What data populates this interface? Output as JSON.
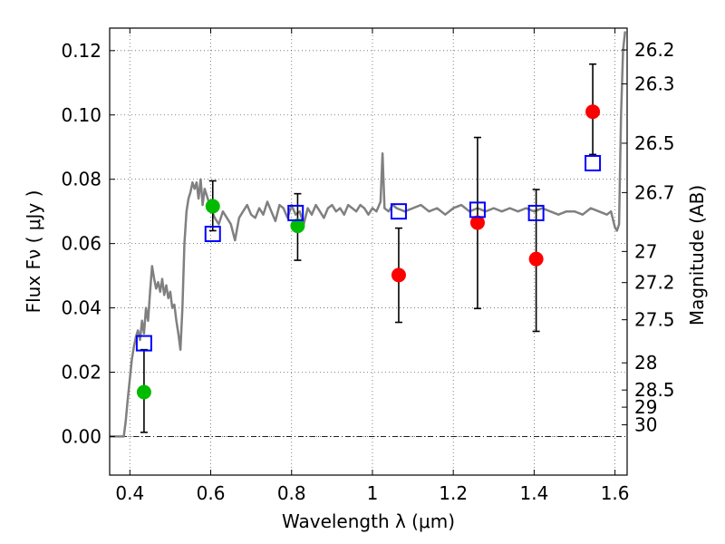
{
  "chart_data": {
    "type": "scatter",
    "xlabel": "Wavelength  λ (μm)",
    "ylabel": "Flux  Fν  ( μJy )",
    "y2label": "Magnitude (AB)",
    "xlim": [
      0.35,
      1.63
    ],
    "ylim": [
      -0.012,
      0.127
    ],
    "grid": true,
    "x_ticks": [
      0.4,
      0.6,
      0.8,
      1.0,
      1.2,
      1.4,
      1.6
    ],
    "x_tick_labels": [
      "0.4",
      "0.6",
      "0.8",
      "1",
      "1.2",
      "1.4",
      "1.6"
    ],
    "y_ticks": [
      0.0,
      0.02,
      0.04,
      0.06,
      0.08,
      0.1,
      0.12
    ],
    "y_tick_labels": [
      "0.00",
      "0.02",
      "0.04",
      "0.06",
      "0.08",
      "0.10",
      "0.12"
    ],
    "mag_ticks": [
      "26.2",
      "26.3",
      "26.5",
      "26.7",
      "27",
      "27.2",
      "27.5",
      "28",
      "28.5",
      "29",
      "30"
    ],
    "colors": {
      "sed": "#808080",
      "green": "#00bb00",
      "red": "#ff0000",
      "model_box": "#0000ff",
      "errorbar": "#000000"
    },
    "sed_curve": {
      "x": [
        0.35,
        0.385,
        0.39,
        0.395,
        0.4,
        0.405,
        0.41,
        0.415,
        0.42,
        0.425,
        0.43,
        0.435,
        0.44,
        0.445,
        0.45,
        0.455,
        0.46,
        0.465,
        0.47,
        0.475,
        0.48,
        0.485,
        0.49,
        0.495,
        0.5,
        0.505,
        0.51,
        0.515,
        0.52,
        0.525,
        0.53,
        0.535,
        0.54,
        0.545,
        0.55,
        0.555,
        0.56,
        0.565,
        0.57,
        0.575,
        0.58,
        0.585,
        0.59,
        0.6,
        0.61,
        0.62,
        0.63,
        0.64,
        0.65,
        0.66,
        0.67,
        0.68,
        0.69,
        0.7,
        0.71,
        0.72,
        0.73,
        0.74,
        0.75,
        0.76,
        0.77,
        0.78,
        0.79,
        0.8,
        0.81,
        0.82,
        0.83,
        0.84,
        0.85,
        0.86,
        0.87,
        0.88,
        0.89,
        0.9,
        0.91,
        0.92,
        0.93,
        0.94,
        0.95,
        0.96,
        0.97,
        0.98,
        0.99,
        1.0,
        1.01,
        1.02,
        1.025,
        1.03,
        1.04,
        1.05,
        1.06,
        1.08,
        1.1,
        1.12,
        1.14,
        1.16,
        1.18,
        1.2,
        1.22,
        1.24,
        1.26,
        1.28,
        1.3,
        1.32,
        1.34,
        1.36,
        1.38,
        1.4,
        1.42,
        1.44,
        1.46,
        1.48,
        1.5,
        1.52,
        1.54,
        1.56,
        1.58,
        1.59,
        1.6,
        1.605,
        1.61,
        1.615,
        1.62,
        1.625
      ],
      "y": [
        0.0,
        0.0,
        0.005,
        0.012,
        0.018,
        0.024,
        0.028,
        0.031,
        0.033,
        0.03,
        0.036,
        0.032,
        0.04,
        0.036,
        0.045,
        0.053,
        0.049,
        0.046,
        0.048,
        0.045,
        0.049,
        0.044,
        0.047,
        0.043,
        0.045,
        0.04,
        0.041,
        0.036,
        0.032,
        0.027,
        0.04,
        0.06,
        0.07,
        0.074,
        0.076,
        0.079,
        0.077,
        0.079,
        0.074,
        0.08,
        0.072,
        0.077,
        0.075,
        0.071,
        0.068,
        0.066,
        0.07,
        0.068,
        0.066,
        0.061,
        0.068,
        0.07,
        0.072,
        0.069,
        0.068,
        0.071,
        0.069,
        0.073,
        0.07,
        0.067,
        0.072,
        0.071,
        0.068,
        0.072,
        0.069,
        0.07,
        0.066,
        0.071,
        0.069,
        0.072,
        0.07,
        0.068,
        0.071,
        0.072,
        0.07,
        0.071,
        0.069,
        0.072,
        0.071,
        0.07,
        0.072,
        0.071,
        0.069,
        0.071,
        0.07,
        0.073,
        0.088,
        0.071,
        0.07,
        0.072,
        0.071,
        0.07,
        0.071,
        0.072,
        0.07,
        0.071,
        0.069,
        0.071,
        0.072,
        0.07,
        0.071,
        0.07,
        0.071,
        0.07,
        0.071,
        0.07,
        0.071,
        0.07,
        0.071,
        0.07,
        0.069,
        0.07,
        0.07,
        0.069,
        0.071,
        0.07,
        0.069,
        0.07,
        0.065,
        0.064,
        0.066,
        0.1,
        0.12,
        0.126
      ]
    },
    "series": [
      {
        "color": "green",
        "marker": "circle",
        "points": [
          {
            "x": 0.435,
            "y": 0.0138,
            "err_low": 0.0013,
            "err_high": 0.027
          },
          {
            "x": 0.605,
            "y": 0.0716,
            "err_low": 0.064,
            "err_high": 0.0795
          },
          {
            "x": 0.815,
            "y": 0.0655,
            "err_low": 0.0548,
            "err_high": 0.0755
          }
        ]
      },
      {
        "color": "red",
        "marker": "circle",
        "points": [
          {
            "x": 1.065,
            "y": 0.0502,
            "err_low": 0.0355,
            "err_high": 0.0648
          },
          {
            "x": 1.26,
            "y": 0.0665,
            "err_low": 0.0398,
            "err_high": 0.093
          },
          {
            "x": 1.405,
            "y": 0.0552,
            "err_low": 0.0327,
            "err_high": 0.0768
          },
          {
            "x": 1.545,
            "y": 0.101,
            "err_low": 0.0877,
            "err_high": 0.1158
          }
        ]
      },
      {
        "color": "model_box",
        "marker": "square",
        "points": [
          {
            "x": 0.435,
            "y": 0.029
          },
          {
            "x": 0.605,
            "y": 0.063
          },
          {
            "x": 0.81,
            "y": 0.0695
          },
          {
            "x": 1.065,
            "y": 0.07
          },
          {
            "x": 1.26,
            "y": 0.0705
          },
          {
            "x": 1.405,
            "y": 0.0695
          },
          {
            "x": 1.545,
            "y": 0.085
          }
        ]
      }
    ]
  }
}
